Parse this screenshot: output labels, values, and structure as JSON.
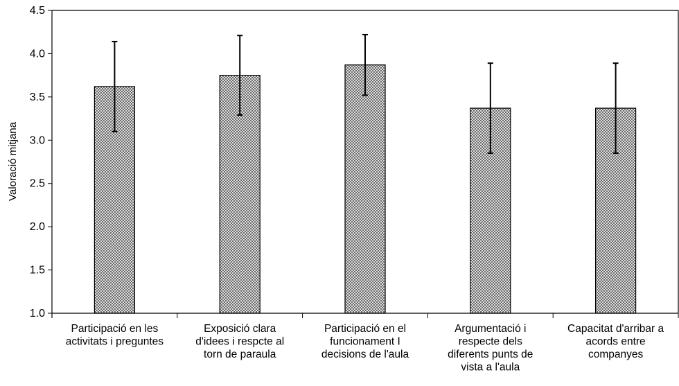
{
  "chart_data": {
    "type": "bar",
    "ylabel": "Valoració mitjana",
    "ylim": [
      1.0,
      4.5
    ],
    "yticks": [
      "1.0",
      "1.5",
      "2.0",
      "2.5",
      "3.0",
      "3.5",
      "4.0",
      "4.5"
    ],
    "grid": false,
    "categories": [
      [
        "Participació en les",
        "activitats i preguntes"
      ],
      [
        "Exposició clara",
        "d'idees i respcte al",
        "torn de paraula"
      ],
      [
        "Participació en el",
        "funcionament I",
        "decisions de l'aula"
      ],
      [
        "Argumentació i",
        "respecte dels",
        "diferents punts de",
        "vista a l'aula"
      ],
      [
        "Capacitat d'arribar a",
        "acords entre",
        "companyes"
      ]
    ],
    "values": [
      3.62,
      3.75,
      3.87,
      3.37,
      3.37
    ],
    "error": [
      0.52,
      0.46,
      0.35,
      0.52,
      0.52
    ],
    "bar_fill": "crosshatch",
    "colors": {
      "bar_pattern": "#555555",
      "axis": "#000000"
    }
  }
}
